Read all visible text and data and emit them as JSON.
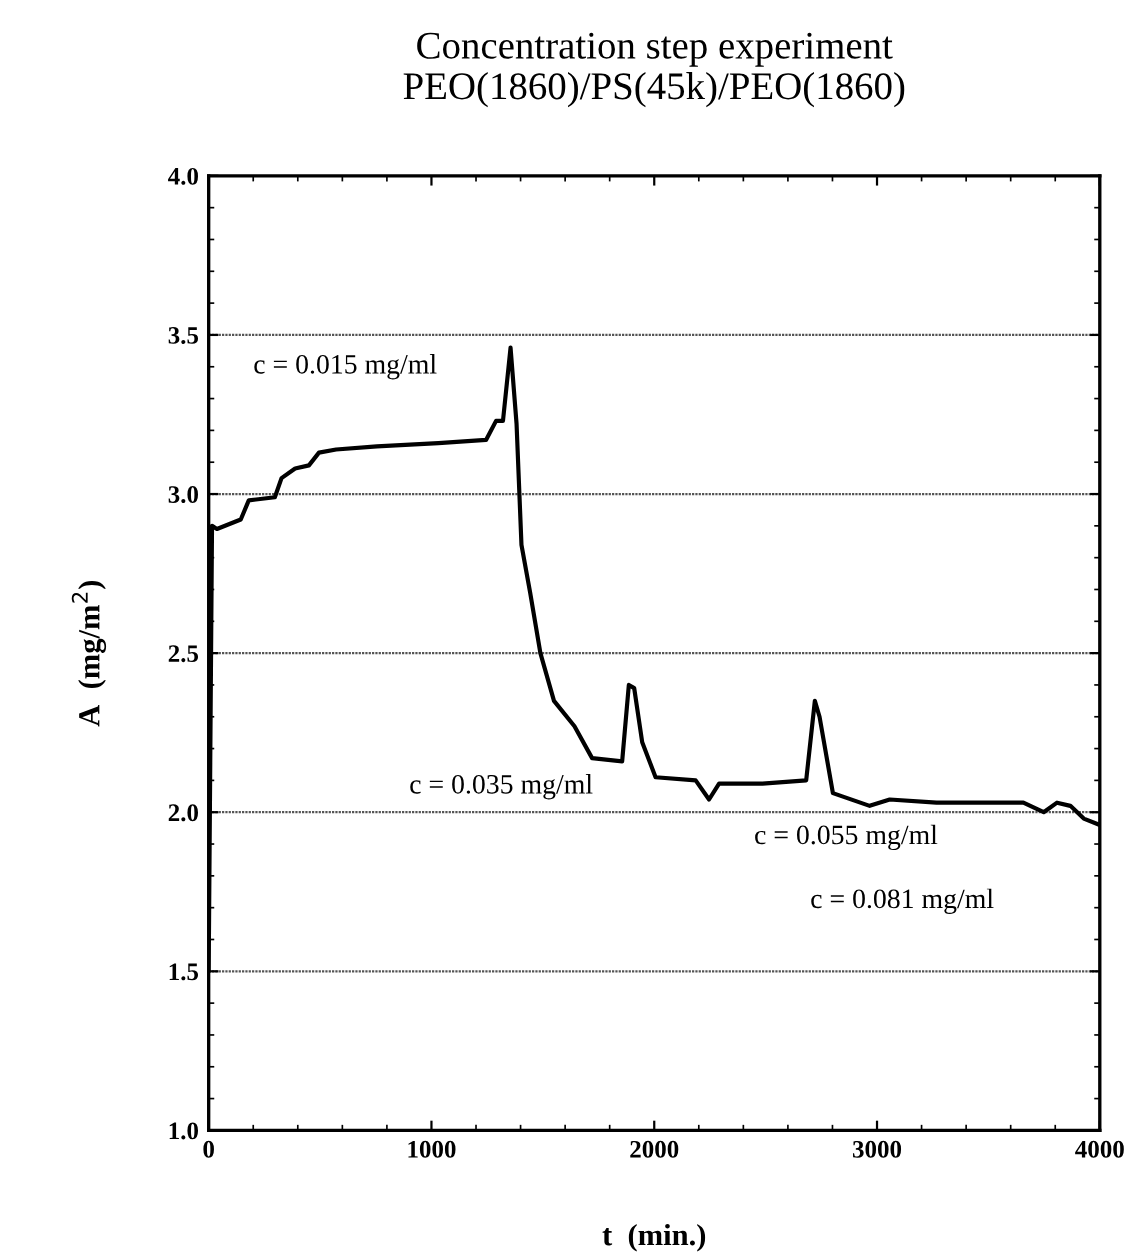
{
  "chart_data": {
    "type": "line",
    "title": "Concentration step experiment\nPEO(1860)/PS(45k)/PEO(1860)",
    "xlabel": "t  (min.)",
    "ylabel": "A  (mg/m$^{2}$)",
    "x": [
      0,
      15,
      37,
      144,
      180,
      297,
      327,
      388,
      450,
      495,
      572,
      755,
      1031,
      1245,
      1290,
      1321,
      1355,
      1382,
      1404,
      1443,
      1489,
      1550,
      1642,
      1721,
      1856,
      1886,
      1910,
      1946,
      2006,
      2186,
      2246,
      2291,
      2486,
      2682,
      2721,
      2742,
      2802,
      2967,
      3057,
      3267,
      3447,
      3657,
      3748,
      3808,
      3868,
      3928,
      4000
    ],
    "series": [
      {
        "color": "#000000",
        "values": [
          1.5,
          2.9,
          2.89,
          2.92,
          2.98,
          2.99,
          3.05,
          3.08,
          3.09,
          3.13,
          3.14,
          3.15,
          3.16,
          3.17,
          3.23,
          3.23,
          3.46,
          3.22,
          2.84,
          2.69,
          2.5,
          2.35,
          2.27,
          2.17,
          2.16,
          2.4,
          2.39,
          2.22,
          2.11,
          2.1,
          2.04,
          2.09,
          2.09,
          2.1,
          2.35,
          2.3,
          2.06,
          2.02,
          2.04,
          2.03,
          2.03,
          2.03,
          2.0,
          2.03,
          2.02,
          1.98,
          1.96
        ]
      }
    ],
    "xlim": [
      0,
      4000
    ],
    "ylim": [
      1.0,
      4.0
    ],
    "xticks": [
      0,
      1000,
      2000,
      3000,
      4000
    ],
    "yticks": [
      {
        "value": 1.0,
        "label": "1.0"
      },
      1.5,
      {
        "value": 2.0,
        "label": "2.0"
      },
      2.5,
      {
        "value": 3.0,
        "label": "3.0"
      },
      3.5,
      {
        "value": 4.0,
        "label": "4.0"
      }
    ],
    "grid": "y",
    "line_style": "solid",
    "marker": "none",
    "annotations": [
      "c = 0.015 mg/ml",
      "c = 0.035 mg/ml",
      "c = 0.055 mg/ml",
      "c = 0.081 mg/ml"
    ]
  }
}
